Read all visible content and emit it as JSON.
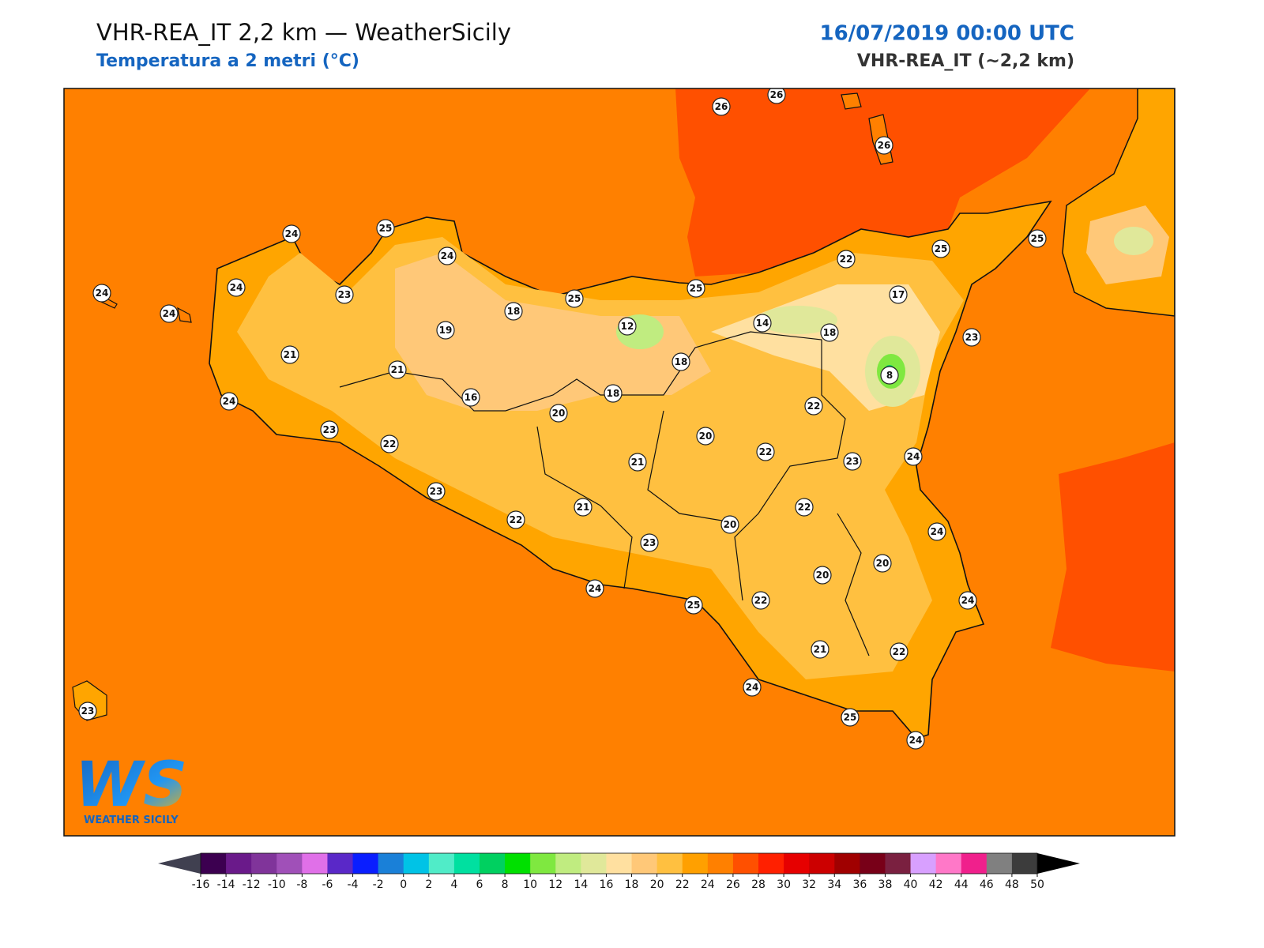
{
  "header": {
    "title": "VHR-REA_IT 2,2 km — WeatherSicily",
    "subtitle": "Temperatura a 2 metri (°C)",
    "datetime": "16/07/2019 00:00 UTC",
    "model": "VHR-REA_IT (~2,2 km)"
  },
  "stations": [
    26,
    26,
    26,
    24,
    25,
    24,
    25,
    25,
    22,
    24,
    24,
    24,
    23,
    25,
    25,
    17,
    18,
    19,
    12,
    14,
    18,
    23,
    21,
    21,
    18,
    8,
    24,
    16,
    18,
    20,
    22,
    23,
    22,
    20,
    22,
    21,
    23,
    24,
    23,
    21,
    22,
    22,
    20,
    24,
    23,
    20,
    20,
    24,
    22,
    25,
    24,
    21,
    22,
    24,
    23,
    25,
    24
  ],
  "colorbar": {
    "ticks": [
      -16,
      -14,
      -12,
      -10,
      -8,
      -6,
      -4,
      -2,
      0,
      2,
      4,
      6,
      8,
      10,
      12,
      14,
      16,
      18,
      20,
      22,
      24,
      26,
      28,
      30,
      32,
      34,
      36,
      38,
      40,
      42,
      44,
      46,
      48,
      50
    ],
    "colors": [
      "#3c0050",
      "#6a1a8a",
      "#80349a",
      "#a050b8",
      "#e070e8",
      "#5a28c8",
      "#0a1eff",
      "#1a80d8",
      "#00c3e6",
      "#50ecc8",
      "#00e0a0",
      "#00d060",
      "#00e000",
      "#7fe840",
      "#c0ec80",
      "#e0e89a",
      "#ffe0a0",
      "#ffc878",
      "#ffc040",
      "#ffa000",
      "#ff8000",
      "#ff5000",
      "#ff2000",
      "#e60000",
      "#cc0000",
      "#a00000",
      "#780018",
      "#7a2040",
      "#d8a0ff",
      "#ff78c8",
      "#f0208c",
      "#808080",
      "#3c3c3c"
    ],
    "under_color": "#404050",
    "over_color": "#000000"
  },
  "logo": {
    "mark": "WS",
    "text": "WEATHER SICILY"
  }
}
